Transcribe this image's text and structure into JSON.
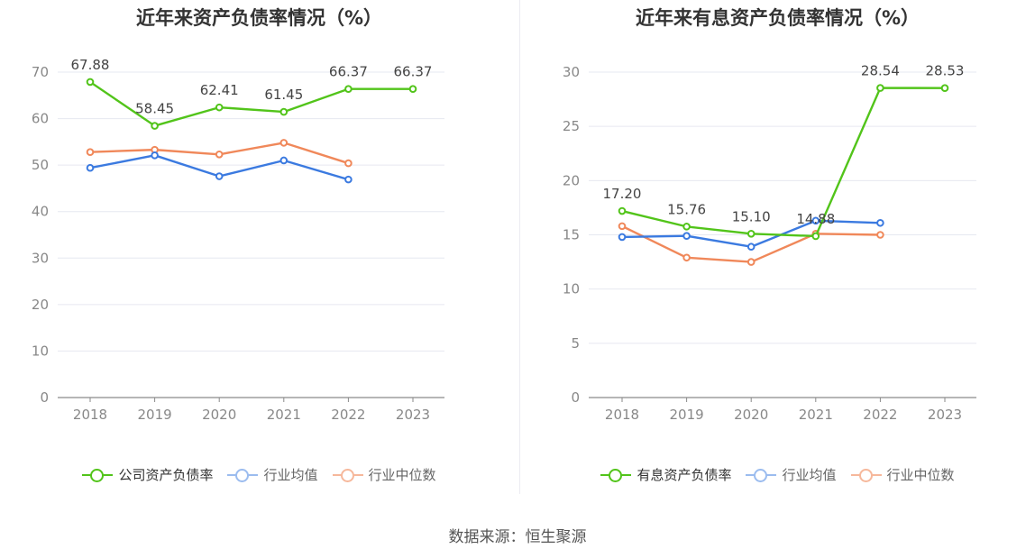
{
  "source": "数据来源：恒生聚源",
  "chart_data": [
    {
      "type": "line",
      "title": "近年来资产负债率情况（%）",
      "categories": [
        "2018",
        "2019",
        "2020",
        "2021",
        "2022",
        "2023"
      ],
      "ylim": [
        0,
        70
      ],
      "yticks": [
        0,
        10,
        20,
        30,
        40,
        50,
        60,
        70
      ],
      "grid": true,
      "legend_position": "bottom",
      "series": [
        {
          "name": "公司资产负债率",
          "color": "#52c41a",
          "values": [
            67.88,
            58.45,
            62.41,
            61.45,
            66.37,
            66.37
          ],
          "labels": [
            "67.88",
            "58.45",
            "62.41",
            "61.45",
            "66.37",
            "66.37"
          ]
        },
        {
          "name": "行业均值",
          "color": "#3b7ae0",
          "values": [
            49.4,
            52.1,
            47.6,
            51.0,
            46.9,
            null
          ]
        },
        {
          "name": "行业中位数",
          "color": "#f0885a",
          "values": [
            52.8,
            53.3,
            52.3,
            54.8,
            50.4,
            null
          ]
        }
      ]
    },
    {
      "type": "line",
      "title": "近年来有息资产负债率情况（%）",
      "categories": [
        "2018",
        "2019",
        "2020",
        "2021",
        "2022",
        "2023"
      ],
      "ylim": [
        0,
        30
      ],
      "yticks": [
        0,
        5,
        10,
        15,
        20,
        25,
        30
      ],
      "grid": true,
      "legend_position": "bottom",
      "series": [
        {
          "name": "有息资产负债率",
          "color": "#52c41a",
          "values": [
            17.2,
            15.76,
            15.1,
            14.88,
            28.54,
            28.53
          ],
          "labels": [
            "17.20",
            "15.76",
            "15.10",
            "14.88",
            "28.54",
            "28.53"
          ]
        },
        {
          "name": "行业均值",
          "color": "#3b7ae0",
          "values": [
            14.8,
            14.9,
            13.9,
            16.3,
            16.1,
            null
          ]
        },
        {
          "name": "行业中位数",
          "color": "#f0885a",
          "values": [
            15.8,
            12.9,
            12.5,
            15.1,
            15.0,
            null
          ]
        }
      ]
    }
  ]
}
